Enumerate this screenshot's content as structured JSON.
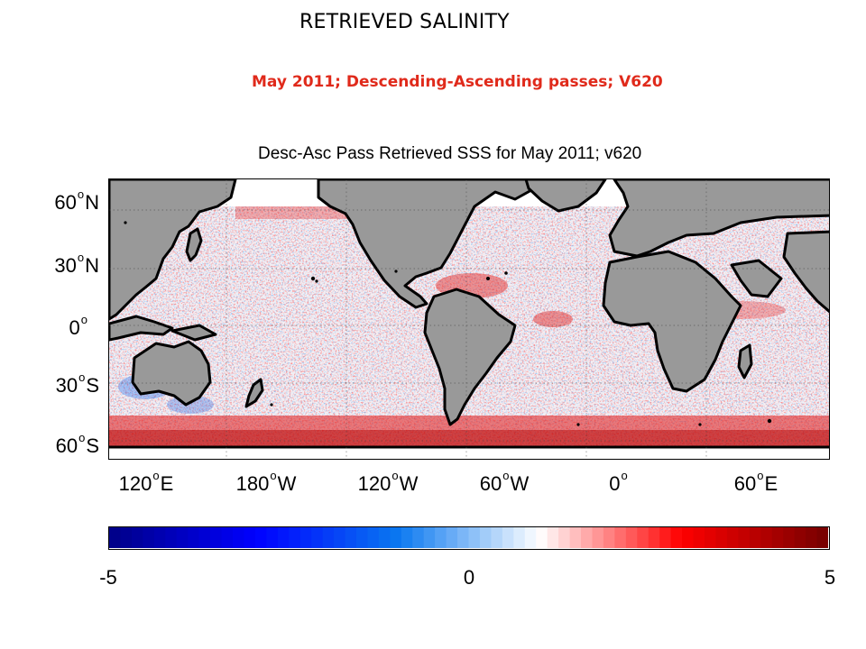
{
  "slide": {
    "title": "RETRIEVED SALINITY",
    "subtitle": "May 2011; Descending-Ascending passes; V620"
  },
  "map": {
    "title": "Desc-Asc Pass Retrieved SSS for May 2011; v620",
    "lat_ticks": [
      {
        "deg": "60",
        "hemi": "N"
      },
      {
        "deg": "30",
        "hemi": "N"
      },
      {
        "deg": "0",
        "hemi": ""
      },
      {
        "deg": "30",
        "hemi": "S"
      },
      {
        "deg": "60",
        "hemi": "S"
      }
    ],
    "lon_ticks": [
      {
        "deg": "120",
        "hemi": "E"
      },
      {
        "deg": "180",
        "hemi": "W"
      },
      {
        "deg": "120",
        "hemi": "W"
      },
      {
        "deg": "60",
        "hemi": "W"
      },
      {
        "deg": "0",
        "hemi": ""
      },
      {
        "deg": "60",
        "hemi": "E"
      }
    ],
    "land_color": "#999999",
    "coast_color": "#000000"
  },
  "colorbar": {
    "min_label": "-5",
    "mid_label": "0",
    "max_label": "5",
    "range": [
      -5,
      5
    ],
    "colormap": [
      "#00008b",
      "#0000ff",
      "#0a78f0",
      "#ffffff",
      "#ff0000",
      "#7a0000"
    ]
  }
}
